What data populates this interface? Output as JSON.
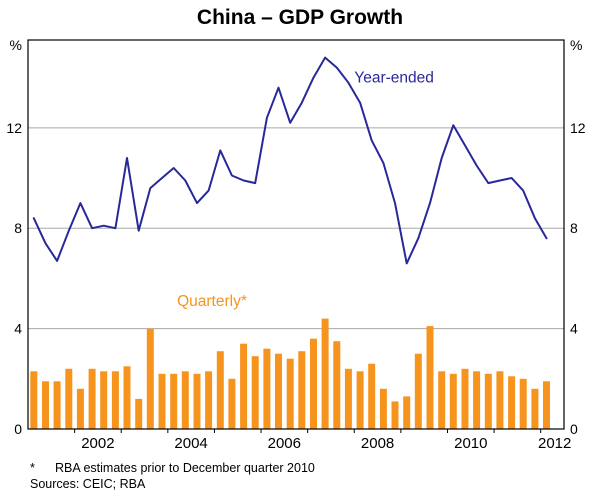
{
  "title": "China – GDP Growth",
  "footnote": {
    "marker": "*",
    "text": "RBA estimates prior to December quarter 2010"
  },
  "sources": "Sources: CEIC; RBA",
  "colors": {
    "line": "#28289B",
    "bar": "#F7941D",
    "grid": "#A8A8A8",
    "frame": "#000000",
    "text": "#000000"
  },
  "chart_data": {
    "type": "bar",
    "subtype": "bar-and-line-combo",
    "title": "China – GDP Growth",
    "ylabel_left": "%",
    "ylabel_right": "%",
    "xlim": [
      2001.0,
      2012.5
    ],
    "ylim": [
      0,
      15.5
    ],
    "y_ticks": [
      0,
      4,
      8,
      12
    ],
    "y_gridlines": [
      4,
      8,
      12
    ],
    "x_year_ticks": [
      2001,
      2002,
      2003,
      2004,
      2005,
      2006,
      2007,
      2008,
      2009,
      2010,
      2011,
      2012
    ],
    "x_tick_labels": [
      2002,
      2004,
      2006,
      2008,
      2010,
      2012
    ],
    "grid": true,
    "legend_position": "inline-annotations",
    "quarters": [
      "2001Q1",
      "2001Q2",
      "2001Q3",
      "2001Q4",
      "2002Q1",
      "2002Q2",
      "2002Q3",
      "2002Q4",
      "2003Q1",
      "2003Q2",
      "2003Q3",
      "2003Q4",
      "2004Q1",
      "2004Q2",
      "2004Q3",
      "2004Q4",
      "2005Q1",
      "2005Q2",
      "2005Q3",
      "2005Q4",
      "2006Q1",
      "2006Q2",
      "2006Q3",
      "2006Q4",
      "2007Q1",
      "2007Q2",
      "2007Q3",
      "2007Q4",
      "2008Q1",
      "2008Q2",
      "2008Q3",
      "2008Q4",
      "2009Q1",
      "2009Q2",
      "2009Q3",
      "2009Q4",
      "2010Q1",
      "2010Q2",
      "2010Q3",
      "2010Q4",
      "2011Q1",
      "2011Q2",
      "2011Q3",
      "2011Q4",
      "2012Q1"
    ],
    "series": [
      {
        "name": "Year-ended",
        "type": "line",
        "color_key": "line",
        "values": [
          8.4,
          7.4,
          6.7,
          7.9,
          9.0,
          8.0,
          8.1,
          8.0,
          10.8,
          7.9,
          9.6,
          10.0,
          10.4,
          9.9,
          9.0,
          9.5,
          11.1,
          10.1,
          9.9,
          9.8,
          12.4,
          13.6,
          12.2,
          13.0,
          14.0,
          14.8,
          14.4,
          13.8,
          13.0,
          11.5,
          10.6,
          9.0,
          6.6,
          7.6,
          9.0,
          10.8,
          12.1,
          11.3,
          10.5,
          9.8,
          9.9,
          10.0,
          9.5,
          8.4,
          7.6
        ]
      },
      {
        "name": "Quarterly*",
        "type": "bar",
        "color_key": "bar",
        "values": [
          2.3,
          1.9,
          1.9,
          2.4,
          1.6,
          2.4,
          2.3,
          2.3,
          2.5,
          1.2,
          4.0,
          2.2,
          2.2,
          2.3,
          2.2,
          2.3,
          3.1,
          2.0,
          3.4,
          2.9,
          3.2,
          3.0,
          2.8,
          3.1,
          3.6,
          4.4,
          3.5,
          2.4,
          2.3,
          2.6,
          1.6,
          1.1,
          1.3,
          3.0,
          4.1,
          2.3,
          2.2,
          2.4,
          2.3,
          2.2,
          2.3,
          2.1,
          2.0,
          1.6,
          1.9
        ]
      }
    ],
    "annotations": [
      {
        "text": "Year-ended",
        "x": 2008.0,
        "y": 13.8,
        "color_key": "line"
      },
      {
        "text": "Quarterly*",
        "x": 2004.2,
        "y": 4.9,
        "color_key": "bar"
      }
    ]
  }
}
